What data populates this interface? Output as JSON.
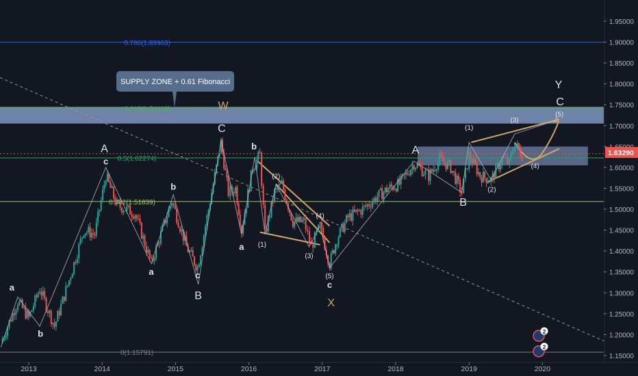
{
  "chart_data": {
    "type": "line",
    "title": "",
    "xlabel": "",
    "ylabel": "",
    "x_tick_labels": [
      "2013",
      "2014",
      "2015",
      "2016",
      "2017",
      "2018",
      "2019",
      "2020"
    ],
    "y_tick_labels": [
      "1.15000",
      "1.20000",
      "1.25000",
      "1.30000",
      "1.35000",
      "1.40000",
      "1.45000",
      "1.50000",
      "1.55000",
      "1.60000",
      "1.65000",
      "1.70000",
      "1.75000",
      "1.80000",
      "1.85000",
      "1.90000",
      "1.95000"
    ],
    "xlim": [
      2012.6,
      2020.75
    ],
    "ylim": [
      1.145,
      1.99
    ],
    "grid": false,
    "last_price": "1.63290",
    "colors": {
      "background": "#131722",
      "candle_up": "#26a69a",
      "candle_down": "#ef5350",
      "wave_line": "#b2b5be",
      "channel": "#d1a66d",
      "fib_0786": "#2962ff",
      "fib_0618": "#4caf50",
      "fib_05": "#26a65b",
      "fib_0382": "#9ccc65",
      "fib_0": "#787b86",
      "supply_zone": "#8fa8d6",
      "price_label": "#ef5350"
    },
    "fib_levels": [
      {
        "label": "0.786(1.89963)",
        "value": 1.89963
      },
      {
        "label": "0.618(1.74118)",
        "value": 1.74118
      },
      {
        "label": "0.5(1.62274)",
        "value": 1.62274
      },
      {
        "label": "0.382(1.51839)",
        "value": 1.51839
      },
      {
        "label": "0(1.15791)",
        "value": 1.15791
      }
    ],
    "callout": "SUPPLY ZONE + 0.61 Fibonacci",
    "supply_zone": {
      "top": 1.745,
      "bottom": 1.705
    },
    "demand_zone": {
      "top": 1.65,
      "bottom": 1.605,
      "x_start": 2018.3,
      "x_end": 2020.62
    },
    "price_path": [
      {
        "x": 2012.62,
        "y": 1.18
      },
      {
        "x": 2012.85,
        "y": 1.28
      },
      {
        "x": 2013.0,
        "y": 1.24
      },
      {
        "x": 2013.15,
        "y": 1.31
      },
      {
        "x": 2013.35,
        "y": 1.22
      },
      {
        "x": 2013.55,
        "y": 1.33
      },
      {
        "x": 2013.75,
        "y": 1.45
      },
      {
        "x": 2013.9,
        "y": 1.44
      },
      {
        "x": 2014.05,
        "y": 1.58
      },
      {
        "x": 2014.2,
        "y": 1.51
      },
      {
        "x": 2014.45,
        "y": 1.49
      },
      {
        "x": 2014.67,
        "y": 1.37
      },
      {
        "x": 2014.8,
        "y": 1.44
      },
      {
        "x": 2014.95,
        "y": 1.52
      },
      {
        "x": 2015.15,
        "y": 1.41
      },
      {
        "x": 2015.3,
        "y": 1.36
      },
      {
        "x": 2015.45,
        "y": 1.5
      },
      {
        "x": 2015.62,
        "y": 1.66
      },
      {
        "x": 2015.72,
        "y": 1.54
      },
      {
        "x": 2015.82,
        "y": 1.55
      },
      {
        "x": 2015.9,
        "y": 1.45
      },
      {
        "x": 2016.05,
        "y": 1.6
      },
      {
        "x": 2016.15,
        "y": 1.63
      },
      {
        "x": 2016.22,
        "y": 1.44
      },
      {
        "x": 2016.35,
        "y": 1.54
      },
      {
        "x": 2016.45,
        "y": 1.56
      },
      {
        "x": 2016.6,
        "y": 1.47
      },
      {
        "x": 2016.75,
        "y": 1.47
      },
      {
        "x": 2016.85,
        "y": 1.41
      },
      {
        "x": 2016.97,
        "y": 1.46
      },
      {
        "x": 2017.1,
        "y": 1.37
      },
      {
        "x": 2017.2,
        "y": 1.43
      },
      {
        "x": 2017.35,
        "y": 1.48
      },
      {
        "x": 2017.55,
        "y": 1.5
      },
      {
        "x": 2017.75,
        "y": 1.53
      },
      {
        "x": 2017.9,
        "y": 1.55
      },
      {
        "x": 2018.05,
        "y": 1.56
      },
      {
        "x": 2018.25,
        "y": 1.61
      },
      {
        "x": 2018.45,
        "y": 1.58
      },
      {
        "x": 2018.6,
        "y": 1.62
      },
      {
        "x": 2018.75,
        "y": 1.6
      },
      {
        "x": 2018.9,
        "y": 1.54
      },
      {
        "x": 2019.0,
        "y": 1.63
      },
      {
        "x": 2019.15,
        "y": 1.58
      },
      {
        "x": 2019.3,
        "y": 1.57
      },
      {
        "x": 2019.45,
        "y": 1.62
      },
      {
        "x": 2019.55,
        "y": 1.61
      },
      {
        "x": 2019.62,
        "y": 1.66
      },
      {
        "x": 2019.72,
        "y": 1.63
      }
    ],
    "wave_path": [
      {
        "x": 2012.62,
        "y": 1.17
      },
      {
        "x": 2012.85,
        "y": 1.29
      },
      {
        "x": 2013.15,
        "y": 1.22
      },
      {
        "x": 2014.05,
        "y": 1.6
      },
      {
        "x": 2014.67,
        "y": 1.37
      },
      {
        "x": 2014.97,
        "y": 1.535
      },
      {
        "x": 2015.31,
        "y": 1.32
      },
      {
        "x": 2015.62,
        "y": 1.665
      },
      {
        "x": 2015.9,
        "y": 1.44
      },
      {
        "x": 2016.08,
        "y": 1.625
      },
      {
        "x": 2016.22,
        "y": 1.44
      },
      {
        "x": 2016.37,
        "y": 1.56
      },
      {
        "x": 2016.82,
        "y": 1.41
      },
      {
        "x": 2016.97,
        "y": 1.46
      },
      {
        "x": 2017.1,
        "y": 1.36
      },
      {
        "x": 2018.25,
        "y": 1.615
      },
      {
        "x": 2018.9,
        "y": 1.54
      },
      {
        "x": 2019.0,
        "y": 1.66
      },
      {
        "x": 2019.3,
        "y": 1.57
      },
      {
        "x": 2019.62,
        "y": 1.68
      }
    ],
    "wave_labels": [
      {
        "text": "a",
        "x": 2012.77,
        "y": 1.305,
        "size": 13,
        "color": "#e0e3eb",
        "weight": "bold"
      },
      {
        "text": "b",
        "x": 2013.16,
        "y": 1.195,
        "size": 13,
        "color": "#e0e3eb",
        "weight": "bold"
      },
      {
        "text": "A",
        "x": 2014.03,
        "y": 1.637,
        "size": 16,
        "color": "#e0e3eb",
        "weight": "normal"
      },
      {
        "text": "c",
        "x": 2014.05,
        "y": 1.607,
        "size": 13,
        "color": "#e0e3eb",
        "weight": "bold"
      },
      {
        "text": "a",
        "x": 2014.67,
        "y": 1.343,
        "size": 13,
        "color": "#e0e3eb",
        "weight": "bold"
      },
      {
        "text": "b",
        "x": 2014.97,
        "y": 1.547,
        "size": 13,
        "color": "#e0e3eb",
        "weight": "bold"
      },
      {
        "text": "c",
        "x": 2015.3,
        "y": 1.335,
        "size": 13,
        "color": "#e0e3eb",
        "weight": "bold"
      },
      {
        "text": "B",
        "x": 2015.31,
        "y": 1.285,
        "size": 16,
        "color": "#e0e3eb",
        "weight": "normal"
      },
      {
        "text": "C",
        "x": 2015.63,
        "y": 1.685,
        "size": 16,
        "color": "#e0e3eb",
        "weight": "normal"
      },
      {
        "text": "W",
        "x": 2015.65,
        "y": 1.74,
        "size": 16,
        "color": "#d1a66d",
        "weight": "normal"
      },
      {
        "text": "a",
        "x": 2015.9,
        "y": 1.403,
        "size": 13,
        "color": "#e0e3eb",
        "weight": "bold"
      },
      {
        "text": "b",
        "x": 2016.07,
        "y": 1.643,
        "size": 13,
        "color": "#e0e3eb",
        "weight": "bold"
      },
      {
        "text": "(1)",
        "x": 2016.18,
        "y": 1.41,
        "size": 10,
        "color": "#e0e3eb",
        "weight": "normal"
      },
      {
        "text": "(2)",
        "x": 2016.37,
        "y": 1.574,
        "size": 10,
        "color": "#e0e3eb",
        "weight": "normal"
      },
      {
        "text": "(3)",
        "x": 2016.82,
        "y": 1.383,
        "size": 10,
        "color": "#e0e3eb",
        "weight": "normal"
      },
      {
        "text": "(4)",
        "x": 2016.97,
        "y": 1.479,
        "size": 10,
        "color": "#e0e3eb",
        "weight": "normal"
      },
      {
        "text": "(5)",
        "x": 2017.1,
        "y": 1.335,
        "size": 10,
        "color": "#e0e3eb",
        "weight": "normal"
      },
      {
        "text": "c",
        "x": 2017.1,
        "y": 1.312,
        "size": 13,
        "color": "#e0e3eb",
        "weight": "bold"
      },
      {
        "text": "X",
        "x": 2017.12,
        "y": 1.268,
        "size": 16,
        "color": "#d1a66d",
        "weight": "normal"
      },
      {
        "text": "A",
        "x": 2018.27,
        "y": 1.633,
        "size": 16,
        "color": "#e0e3eb",
        "weight": "normal"
      },
      {
        "text": "B",
        "x": 2018.92,
        "y": 1.508,
        "size": 16,
        "color": "#e0e3eb",
        "weight": "normal"
      },
      {
        "text": "(1)",
        "x": 2019.0,
        "y": 1.69,
        "size": 10,
        "color": "#e0e3eb",
        "weight": "normal"
      },
      {
        "text": "(2)",
        "x": 2019.31,
        "y": 1.542,
        "size": 10,
        "color": "#e0e3eb",
        "weight": "normal"
      },
      {
        "text": "(3)",
        "x": 2019.62,
        "y": 1.708,
        "size": 10,
        "color": "#e0e3eb",
        "weight": "normal"
      },
      {
        "text": "(4)",
        "x": 2019.9,
        "y": 1.598,
        "size": 10,
        "color": "#e0e3eb",
        "weight": "normal"
      },
      {
        "text": "(5)",
        "x": 2020.23,
        "y": 1.722,
        "size": 10,
        "color": "#e0e3eb",
        "weight": "normal"
      },
      {
        "text": "Y",
        "x": 2020.22,
        "y": 1.79,
        "size": 16,
        "color": "#e0e3eb",
        "weight": "normal"
      },
      {
        "text": "C",
        "x": 2020.24,
        "y": 1.749,
        "size": 16,
        "color": "#e0e3eb",
        "weight": "normal"
      }
    ],
    "event_markers": [
      {
        "count": "2",
        "x": 2019.95,
        "y": 1.197
      },
      {
        "count": "2",
        "x": 2019.95,
        "y": 1.16
      }
    ]
  }
}
